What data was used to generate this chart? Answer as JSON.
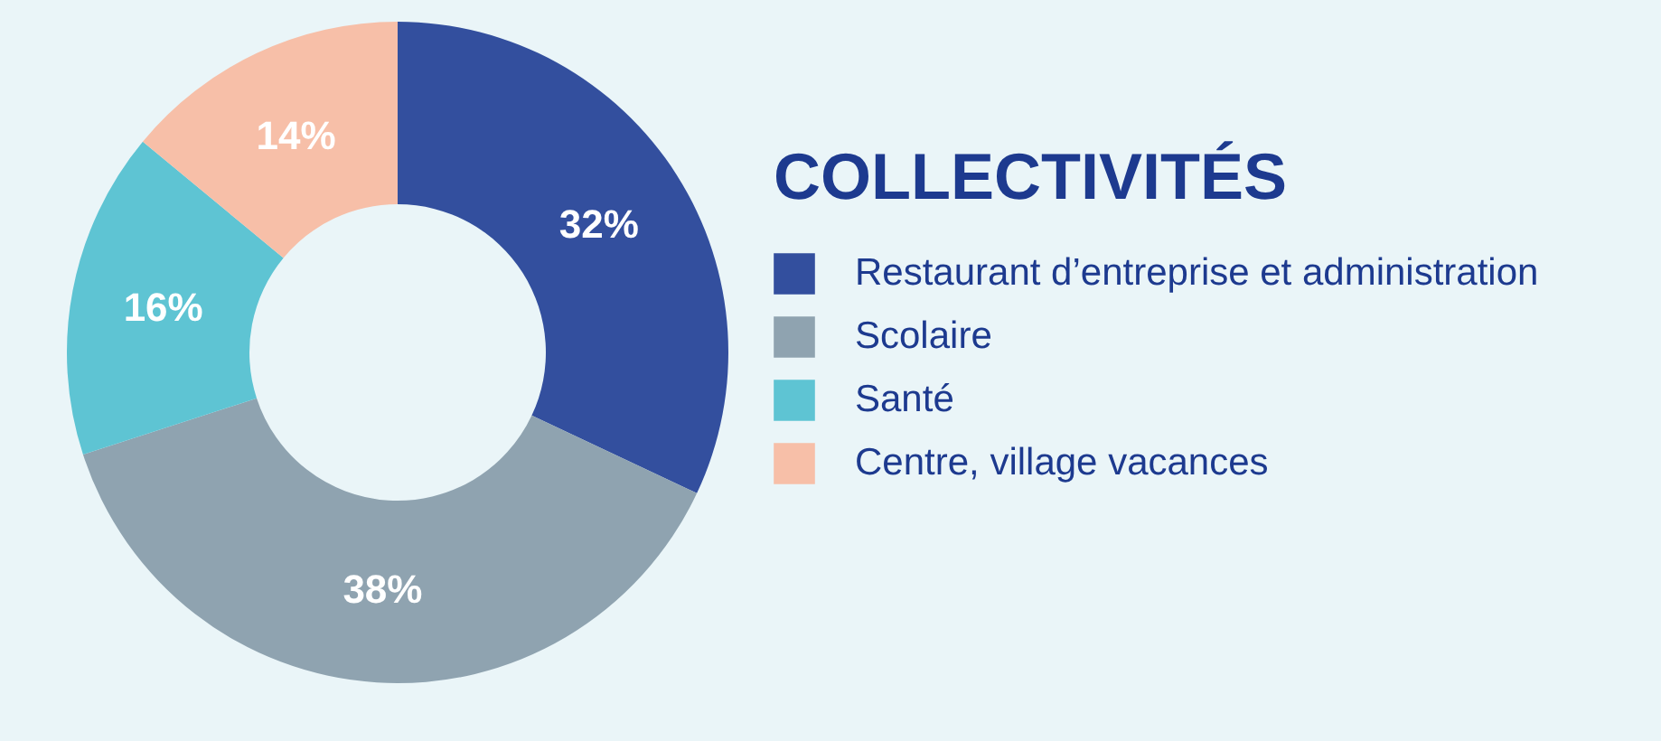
{
  "chart_data": {
    "type": "donut",
    "legend_title": "COLLECTIVITÉS",
    "categories": [
      "Restaurant d’entreprise et administration",
      "Scolaire",
      "Santé",
      "Centre, village vacances"
    ],
    "values": [
      32,
      38,
      16,
      14
    ],
    "colors": [
      "#334f9e",
      "#8fa3b0",
      "#5ec4d3",
      "#f7bfa8"
    ],
    "value_labels": [
      "32%",
      "38%",
      "16%",
      "14%"
    ],
    "legend": "right"
  }
}
